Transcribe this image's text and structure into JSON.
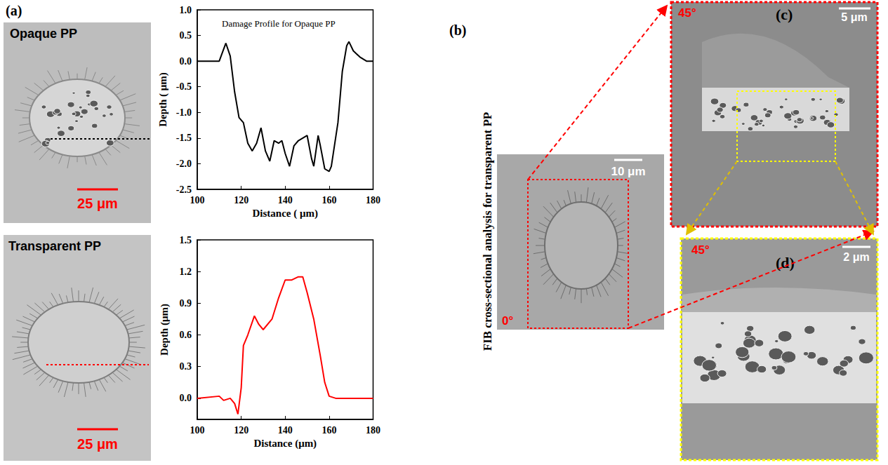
{
  "chart_data": [
    {
      "type": "line",
      "title": "Damage Profile for Opaque PP",
      "x_label": "Distance ( μm)",
      "y_label": "Depth ( μm)",
      "x": [
        100,
        110,
        113,
        115,
        117,
        119,
        121,
        123,
        125,
        127,
        129,
        131,
        133,
        135,
        137,
        138.5,
        140,
        142,
        144,
        146,
        148,
        150,
        152,
        153,
        155,
        156,
        158,
        160,
        161,
        164,
        166,
        168,
        169,
        171,
        174,
        177,
        180
      ],
      "values": [
        0,
        0,
        0.35,
        0.1,
        -0.6,
        -1.1,
        -1.2,
        -1.6,
        -1.75,
        -1.6,
        -1.3,
        -1.75,
        -1.95,
        -1.55,
        -1.6,
        -1.55,
        -1.8,
        -2.05,
        -1.65,
        -1.55,
        -1.5,
        -1.45,
        -1.9,
        -2.05,
        -1.45,
        -1.65,
        -2.1,
        -2.15,
        -2.05,
        -1.2,
        -0.2,
        0.3,
        0.38,
        0.2,
        0.08,
        0,
        0
      ],
      "color": "#000000",
      "xlim": [
        100,
        180
      ],
      "xticks": [
        100,
        120,
        140,
        160,
        180
      ],
      "ylim": [
        -2.5,
        1.0
      ],
      "yticks": [
        -2.5,
        {
          "value": -2,
          "label": "-2.0"
        },
        -1.5,
        {
          "value": -1,
          "label": "-1.0"
        },
        -0.5,
        {
          "value": 0,
          "label": "0.0"
        },
        0.5,
        {
          "value": 1,
          "label": "1.0"
        }
      ],
      "grid": false
    },
    {
      "type": "line",
      "x_label": "Distance (μm)",
      "y_label": "Depth (μm)",
      "x": [
        100,
        110,
        112,
        115,
        117,
        118.5,
        120,
        121,
        123,
        126,
        128,
        130,
        134,
        137,
        140,
        143,
        146,
        148,
        150,
        153,
        156,
        158,
        160,
        163,
        170,
        180
      ],
      "values": [
        0,
        0.02,
        -0.02,
        0,
        -0.05,
        -0.15,
        0.1,
        0.5,
        0.6,
        0.78,
        0.7,
        0.65,
        0.75,
        0.95,
        1.12,
        1.12,
        1.15,
        1.15,
        1.0,
        0.75,
        0.4,
        0.15,
        0.02,
        0,
        0,
        0
      ],
      "color": "#ff0000",
      "xlim": [
        100,
        180
      ],
      "xticks": [
        100,
        120,
        140,
        160,
        180
      ],
      "ylim": [
        -0.2,
        1.5
      ],
      "yticks": [
        {
          "value": 0,
          "label": "0.0"
        },
        0.3,
        0.6,
        0.9,
        1.2,
        1.5
      ],
      "grid": false
    }
  ],
  "panels": {
    "a": {
      "label": "(a)",
      "images": [
        {
          "title": "Opaque PP",
          "scale_bar": "25 μm"
        },
        {
          "title": "Transparent PP",
          "scale_bar": "25 μm"
        }
      ]
    },
    "b": {
      "label": "(b)",
      "side_title": "FIB cross-sectional analysis for transparent PP",
      "scale_bar": "10 μm",
      "angle": "0°"
    },
    "c": {
      "label": "(c)",
      "angle": "45°",
      "scale_bar": "5 μm"
    },
    "d": {
      "label": "(d)",
      "angle": "45°",
      "scale_bar": "2 μm"
    }
  }
}
